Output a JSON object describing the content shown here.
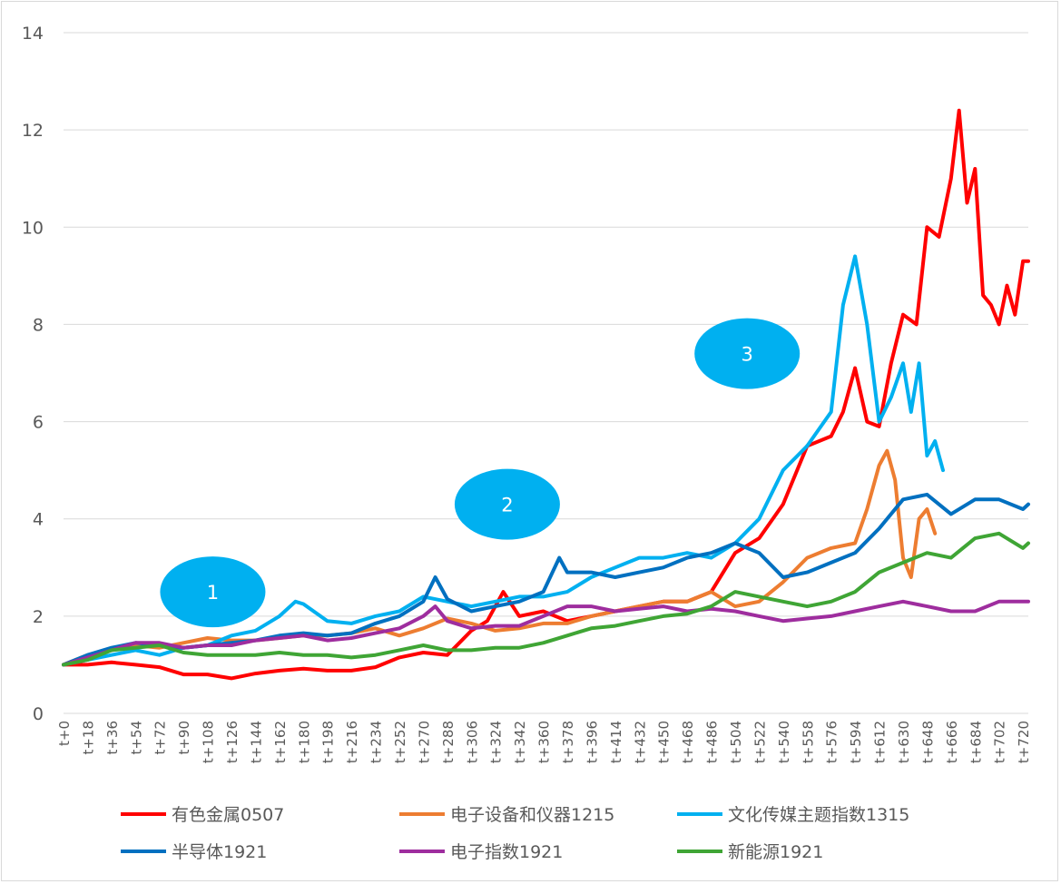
{
  "chart_data": {
    "type": "line",
    "title": "",
    "xlabel": "",
    "ylabel": "",
    "ylim": [
      0,
      14
    ],
    "yticks": [
      "0",
      "2",
      "4",
      "6",
      "8",
      "10",
      "12",
      "14"
    ],
    "grid": true,
    "legend_position": "bottom",
    "x_ticks": [
      "t+0",
      "t+18",
      "t+36",
      "t+54",
      "t+72",
      "t+90",
      "t+108",
      "t+126",
      "t+144",
      "t+162",
      "t+180",
      "t+198",
      "t+216",
      "t+234",
      "t+252",
      "t+270",
      "t+288",
      "t+306",
      "t+324",
      "t+342",
      "t+360",
      "t+378",
      "t+396",
      "t+414",
      "t+432",
      "t+450",
      "t+468",
      "t+486",
      "t+504",
      "t+522",
      "t+540",
      "t+558",
      "t+576",
      "t+594",
      "t+612",
      "t+630",
      "t+648",
      "t+666",
      "t+684",
      "t+702",
      "t+720"
    ],
    "series": [
      {
        "name": "有色金属0507",
        "color": "#ff0000",
        "points": [
          [
            0,
            1.0
          ],
          [
            18,
            1.0
          ],
          [
            36,
            1.05
          ],
          [
            54,
            1.0
          ],
          [
            72,
            0.95
          ],
          [
            90,
            0.8
          ],
          [
            108,
            0.8
          ],
          [
            126,
            0.72
          ],
          [
            144,
            0.82
          ],
          [
            162,
            0.88
          ],
          [
            180,
            0.92
          ],
          [
            198,
            0.88
          ],
          [
            216,
            0.88
          ],
          [
            234,
            0.95
          ],
          [
            252,
            1.15
          ],
          [
            270,
            1.25
          ],
          [
            288,
            1.2
          ],
          [
            306,
            1.7
          ],
          [
            318,
            1.9
          ],
          [
            330,
            2.5
          ],
          [
            342,
            2.0
          ],
          [
            360,
            2.1
          ],
          [
            378,
            1.9
          ],
          [
            396,
            2.0
          ],
          [
            414,
            2.1
          ],
          [
            432,
            2.2
          ],
          [
            450,
            2.3
          ],
          [
            468,
            2.3
          ],
          [
            486,
            2.5
          ],
          [
            504,
            3.3
          ],
          [
            522,
            3.6
          ],
          [
            540,
            4.3
          ],
          [
            558,
            5.5
          ],
          [
            576,
            5.7
          ],
          [
            585,
            6.2
          ],
          [
            594,
            7.1
          ],
          [
            603,
            6.0
          ],
          [
            612,
            5.9
          ],
          [
            621,
            7.2
          ],
          [
            630,
            8.2
          ],
          [
            640,
            8.0
          ],
          [
            648,
            10.0
          ],
          [
            657,
            9.8
          ],
          [
            666,
            11.0
          ],
          [
            672,
            12.4
          ],
          [
            678,
            10.5
          ],
          [
            684,
            11.2
          ],
          [
            690,
            8.6
          ],
          [
            696,
            8.4
          ],
          [
            702,
            8.0
          ],
          [
            708,
            8.8
          ],
          [
            714,
            8.2
          ],
          [
            720,
            9.3
          ],
          [
            724,
            9.3
          ]
        ]
      },
      {
        "name": "电子设备和仪器1215",
        "color": "#ed7d31",
        "points": [
          [
            0,
            1.0
          ],
          [
            18,
            1.2
          ],
          [
            36,
            1.3
          ],
          [
            54,
            1.4
          ],
          [
            72,
            1.35
          ],
          [
            90,
            1.45
          ],
          [
            108,
            1.55
          ],
          [
            126,
            1.5
          ],
          [
            144,
            1.5
          ],
          [
            162,
            1.55
          ],
          [
            180,
            1.6
          ],
          [
            198,
            1.6
          ],
          [
            216,
            1.65
          ],
          [
            234,
            1.75
          ],
          [
            252,
            1.6
          ],
          [
            270,
            1.75
          ],
          [
            288,
            1.95
          ],
          [
            306,
            1.85
          ],
          [
            324,
            1.7
          ],
          [
            342,
            1.75
          ],
          [
            360,
            1.85
          ],
          [
            378,
            1.85
          ],
          [
            396,
            2.0
          ],
          [
            414,
            2.1
          ],
          [
            432,
            2.2
          ],
          [
            450,
            2.3
          ],
          [
            468,
            2.3
          ],
          [
            486,
            2.5
          ],
          [
            504,
            2.2
          ],
          [
            522,
            2.3
          ],
          [
            540,
            2.7
          ],
          [
            558,
            3.2
          ],
          [
            576,
            3.4
          ],
          [
            594,
            3.5
          ],
          [
            603,
            4.2
          ],
          [
            612,
            5.1
          ],
          [
            618,
            5.4
          ],
          [
            624,
            4.8
          ],
          [
            630,
            3.2
          ],
          [
            636,
            2.8
          ],
          [
            642,
            4.0
          ],
          [
            648,
            4.2
          ],
          [
            654,
            3.7
          ]
        ]
      },
      {
        "name": "文化传媒主题指数1315",
        "color": "#00b0f0",
        "points": [
          [
            0,
            1.0
          ],
          [
            18,
            1.1
          ],
          [
            36,
            1.2
          ],
          [
            54,
            1.3
          ],
          [
            72,
            1.2
          ],
          [
            90,
            1.35
          ],
          [
            108,
            1.4
          ],
          [
            126,
            1.6
          ],
          [
            144,
            1.7
          ],
          [
            162,
            2.0
          ],
          [
            174,
            2.3
          ],
          [
            180,
            2.25
          ],
          [
            198,
            1.9
          ],
          [
            216,
            1.85
          ],
          [
            234,
            2.0
          ],
          [
            252,
            2.1
          ],
          [
            270,
            2.4
          ],
          [
            288,
            2.3
          ],
          [
            306,
            2.2
          ],
          [
            324,
            2.3
          ],
          [
            342,
            2.4
          ],
          [
            360,
            2.4
          ],
          [
            378,
            2.5
          ],
          [
            396,
            2.8
          ],
          [
            414,
            3.0
          ],
          [
            432,
            3.2
          ],
          [
            450,
            3.2
          ],
          [
            468,
            3.3
          ],
          [
            486,
            3.2
          ],
          [
            504,
            3.5
          ],
          [
            522,
            4.0
          ],
          [
            540,
            5.0
          ],
          [
            558,
            5.5
          ],
          [
            576,
            6.2
          ],
          [
            585,
            8.4
          ],
          [
            594,
            9.4
          ],
          [
            603,
            8.0
          ],
          [
            612,
            6.0
          ],
          [
            621,
            6.5
          ],
          [
            630,
            7.2
          ],
          [
            636,
            6.2
          ],
          [
            642,
            7.2
          ],
          [
            648,
            5.3
          ],
          [
            654,
            5.6
          ],
          [
            660,
            5.0
          ]
        ]
      },
      {
        "name": "半导体1921",
        "color": "#0070c0",
        "points": [
          [
            0,
            1.0
          ],
          [
            18,
            1.2
          ],
          [
            36,
            1.35
          ],
          [
            54,
            1.45
          ],
          [
            72,
            1.4
          ],
          [
            90,
            1.35
          ],
          [
            108,
            1.4
          ],
          [
            126,
            1.45
          ],
          [
            144,
            1.5
          ],
          [
            162,
            1.6
          ],
          [
            180,
            1.65
          ],
          [
            198,
            1.6
          ],
          [
            216,
            1.65
          ],
          [
            234,
            1.85
          ],
          [
            252,
            2.0
          ],
          [
            270,
            2.3
          ],
          [
            279,
            2.8
          ],
          [
            288,
            2.35
          ],
          [
            306,
            2.1
          ],
          [
            324,
            2.2
          ],
          [
            342,
            2.3
          ],
          [
            360,
            2.5
          ],
          [
            372,
            3.2
          ],
          [
            378,
            2.9
          ],
          [
            396,
            2.9
          ],
          [
            414,
            2.8
          ],
          [
            432,
            2.9
          ],
          [
            450,
            3.0
          ],
          [
            468,
            3.2
          ],
          [
            486,
            3.3
          ],
          [
            504,
            3.5
          ],
          [
            522,
            3.3
          ],
          [
            540,
            2.8
          ],
          [
            558,
            2.9
          ],
          [
            576,
            3.1
          ],
          [
            594,
            3.3
          ],
          [
            612,
            3.8
          ],
          [
            630,
            4.4
          ],
          [
            648,
            4.5
          ],
          [
            666,
            4.1
          ],
          [
            684,
            4.4
          ],
          [
            702,
            4.4
          ],
          [
            720,
            4.2
          ],
          [
            724,
            4.3
          ]
        ]
      },
      {
        "name": "电子指数1921",
        "color": "#9e2d9e",
        "points": [
          [
            0,
            1.0
          ],
          [
            18,
            1.15
          ],
          [
            36,
            1.3
          ],
          [
            54,
            1.45
          ],
          [
            72,
            1.45
          ],
          [
            90,
            1.35
          ],
          [
            108,
            1.4
          ],
          [
            126,
            1.4
          ],
          [
            144,
            1.5
          ],
          [
            162,
            1.55
          ],
          [
            180,
            1.6
          ],
          [
            198,
            1.5
          ],
          [
            216,
            1.55
          ],
          [
            234,
            1.65
          ],
          [
            252,
            1.75
          ],
          [
            270,
            2.0
          ],
          [
            279,
            2.2
          ],
          [
            288,
            1.9
          ],
          [
            306,
            1.75
          ],
          [
            324,
            1.8
          ],
          [
            342,
            1.8
          ],
          [
            360,
            2.0
          ],
          [
            378,
            2.2
          ],
          [
            396,
            2.2
          ],
          [
            414,
            2.1
          ],
          [
            432,
            2.15
          ],
          [
            450,
            2.2
          ],
          [
            468,
            2.1
          ],
          [
            486,
            2.15
          ],
          [
            504,
            2.1
          ],
          [
            522,
            2.0
          ],
          [
            540,
            1.9
          ],
          [
            558,
            1.95
          ],
          [
            576,
            2.0
          ],
          [
            594,
            2.1
          ],
          [
            612,
            2.2
          ],
          [
            630,
            2.3
          ],
          [
            648,
            2.2
          ],
          [
            666,
            2.1
          ],
          [
            684,
            2.1
          ],
          [
            702,
            2.3
          ],
          [
            720,
            2.3
          ],
          [
            724,
            2.3
          ]
        ]
      },
      {
        "name": "新能源1921",
        "color": "#3fa535",
        "points": [
          [
            0,
            1.0
          ],
          [
            18,
            1.1
          ],
          [
            36,
            1.3
          ],
          [
            54,
            1.35
          ],
          [
            72,
            1.4
          ],
          [
            90,
            1.25
          ],
          [
            108,
            1.2
          ],
          [
            126,
            1.2
          ],
          [
            144,
            1.2
          ],
          [
            162,
            1.25
          ],
          [
            180,
            1.2
          ],
          [
            198,
            1.2
          ],
          [
            216,
            1.15
          ],
          [
            234,
            1.2
          ],
          [
            252,
            1.3
          ],
          [
            270,
            1.4
          ],
          [
            288,
            1.3
          ],
          [
            306,
            1.3
          ],
          [
            324,
            1.35
          ],
          [
            342,
            1.35
          ],
          [
            360,
            1.45
          ],
          [
            378,
            1.6
          ],
          [
            396,
            1.75
          ],
          [
            414,
            1.8
          ],
          [
            432,
            1.9
          ],
          [
            450,
            2.0
          ],
          [
            468,
            2.05
          ],
          [
            486,
            2.2
          ],
          [
            504,
            2.5
          ],
          [
            522,
            2.4
          ],
          [
            540,
            2.3
          ],
          [
            558,
            2.2
          ],
          [
            576,
            2.3
          ],
          [
            594,
            2.5
          ],
          [
            612,
            2.9
          ],
          [
            630,
            3.1
          ],
          [
            648,
            3.3
          ],
          [
            666,
            3.2
          ],
          [
            684,
            3.6
          ],
          [
            702,
            3.7
          ],
          [
            720,
            3.4
          ],
          [
            724,
            3.5
          ]
        ]
      }
    ],
    "annotations": [
      {
        "label": "1",
        "x": 112,
        "y": 2.5
      },
      {
        "label": "2",
        "x": 333,
        "y": 4.3
      },
      {
        "label": "3",
        "x": 513,
        "y": 7.4
      }
    ]
  }
}
